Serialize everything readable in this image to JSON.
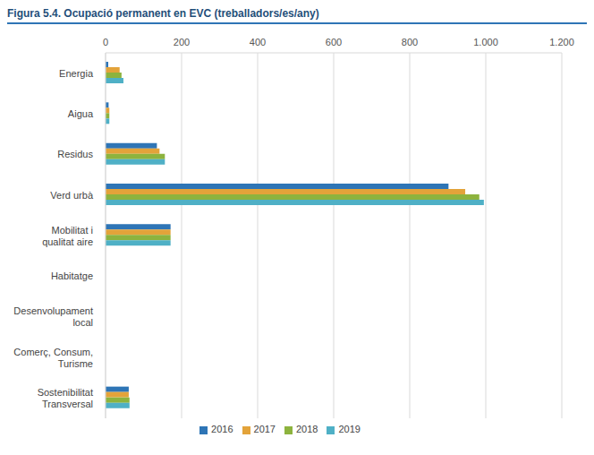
{
  "chart_data": {
    "type": "bar",
    "title": "Figura 5.4. Ocupació permanent en EVC (treballadors/es/any)",
    "orientation": "horizontal",
    "categories": [
      "Energia",
      "Aigua",
      "Residus",
      "Verd urbà",
      "Mobilitat i qualitat aire",
      "Habitatge",
      "Desenvolupament local",
      "Comerç, Consum, Turisme",
      "Sostenibilitat Transversal"
    ],
    "series": [
      {
        "name": "2016",
        "color": "#2e75b6",
        "values": [
          7,
          8,
          135,
          902,
          171,
          0,
          0,
          0,
          61
        ]
      },
      {
        "name": "2017",
        "color": "#e3a33a",
        "values": [
          37,
          10,
          142,
          946,
          171,
          0,
          0,
          0,
          61
        ]
      },
      {
        "name": "2018",
        "color": "#8db33e",
        "values": [
          42,
          10,
          156,
          983,
          171,
          0,
          0,
          0,
          63
        ]
      },
      {
        "name": "2019",
        "color": "#4fb0c6",
        "values": [
          47,
          10,
          156,
          995,
          171,
          0,
          0,
          0,
          63
        ]
      }
    ],
    "xlim": [
      0,
      1200
    ],
    "xticks": [
      0,
      200,
      400,
      600,
      800,
      {
        "value": 1000,
        "label": "1.000"
      },
      {
        "value": 1200,
        "label": "1.200"
      }
    ],
    "grid": true,
    "legend": "bottom"
  }
}
